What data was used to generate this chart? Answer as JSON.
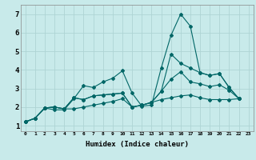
{
  "title": "",
  "xlabel": "Humidex (Indice chaleur)",
  "background_color": "#c8eaea",
  "grid_color": "#aed4d4",
  "line_color": "#006666",
  "xlim": [
    -0.5,
    23.5
  ],
  "ylim": [
    0.7,
    7.5
  ],
  "xticks": [
    0,
    1,
    2,
    3,
    4,
    5,
    6,
    7,
    8,
    9,
    10,
    11,
    12,
    13,
    14,
    15,
    16,
    17,
    18,
    19,
    20,
    21,
    22,
    23
  ],
  "yticks": [
    1,
    2,
    3,
    4,
    5,
    6,
    7
  ],
  "lines": [
    [
      1.2,
      1.4,
      1.95,
      1.85,
      1.85,
      2.45,
      3.15,
      3.05,
      3.35,
      3.55,
      3.95,
      2.75,
      2.05,
      2.1,
      4.1,
      5.85,
      7.0,
      6.35,
      3.85,
      3.7,
      3.8,
      3.05,
      2.45
    ],
    [
      1.2,
      1.4,
      1.95,
      2.0,
      1.9,
      2.5,
      2.4,
      2.6,
      2.65,
      2.7,
      2.75,
      2.0,
      2.1,
      2.25,
      2.85,
      4.85,
      4.35,
      4.1,
      3.85,
      3.7,
      3.8,
      3.05,
      2.45
    ],
    [
      1.2,
      1.4,
      1.95,
      2.0,
      1.9,
      2.5,
      2.4,
      2.6,
      2.65,
      2.7,
      2.75,
      2.0,
      2.1,
      2.25,
      2.85,
      3.5,
      3.9,
      3.35,
      3.25,
      3.1,
      3.2,
      2.9,
      2.45
    ],
    [
      1.2,
      1.4,
      1.95,
      2.0,
      1.9,
      1.9,
      2.0,
      2.1,
      2.2,
      2.3,
      2.45,
      2.0,
      2.1,
      2.25,
      2.4,
      2.5,
      2.6,
      2.65,
      2.5,
      2.4,
      2.4,
      2.4,
      2.45
    ]
  ]
}
